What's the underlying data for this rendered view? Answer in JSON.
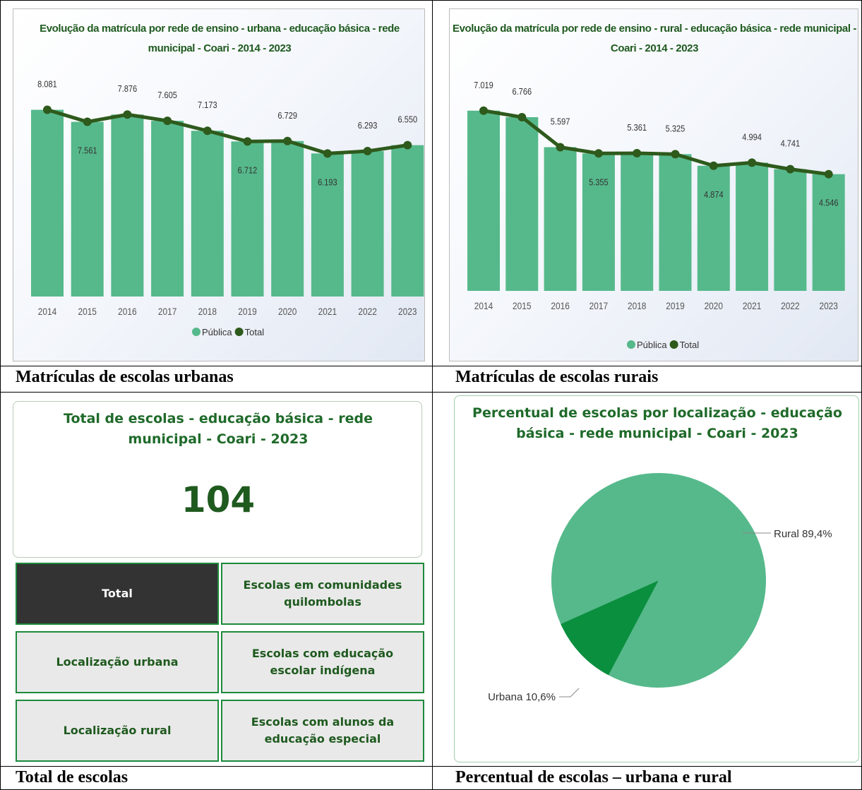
{
  "captions": [
    "Matrículas de escolas urbanas",
    "Matrículas de escolas rurais",
    "Total de escolas",
    "Percentual de escolas – urbana e rural"
  ],
  "chart_data": [
    {
      "type": "combo",
      "title": "Evolução da matrícula por rede de ensino - urbana - educação básica - rede municipal - Coari - 2014 - 2023",
      "categories": [
        "2014",
        "2015",
        "2016",
        "2017",
        "2018",
        "2019",
        "2020",
        "2021",
        "2022",
        "2023"
      ],
      "ylim": [
        0,
        8800
      ],
      "series": [
        {
          "name": "Pública",
          "type": "bar",
          "color": "#56b98b",
          "values": [
            8081,
            7561,
            7876,
            7605,
            7173,
            6712,
            6729,
            6193,
            6293,
            6550
          ]
        },
        {
          "name": "Total",
          "type": "line",
          "color": "#2e5a1c",
          "values": [
            8081,
            7561,
            7876,
            7605,
            7173,
            6712,
            6729,
            6193,
            6293,
            6550
          ],
          "value_labels": [
            "8.081",
            "7.561",
            "7.876",
            "7.605",
            "7.173",
            "6.712",
            "6.729",
            "6.193",
            "6.293",
            "6.550"
          ]
        }
      ]
    },
    {
      "type": "combo",
      "title": "Evolução da matrícula por rede de ensino - rural - educação básica - rede municipal - Coari - 2014 - 2023",
      "categories": [
        "2014",
        "2015",
        "2016",
        "2017",
        "2018",
        "2019",
        "2020",
        "2021",
        "2022",
        "2023"
      ],
      "ylim": [
        0,
        7700
      ],
      "series": [
        {
          "name": "Pública",
          "type": "bar",
          "color": "#56b98b",
          "values": [
            7019,
            6766,
            5597,
            5355,
            5361,
            5325,
            4874,
            4994,
            4741,
            4546
          ]
        },
        {
          "name": "Total",
          "type": "line",
          "color": "#2e5a1c",
          "values": [
            7019,
            6766,
            5597,
            5355,
            5361,
            5325,
            4874,
            4994,
            4741,
            4546
          ],
          "value_labels": [
            "7.019",
            "6.766",
            "5.597",
            "5.355",
            "5.361",
            "5.325",
            "4.874",
            "4.994",
            "4.741",
            "4.546"
          ]
        }
      ]
    },
    {
      "type": "pie",
      "title": "Percentual de escolas por localização - educação básica - rede municipal - Coari - 2023",
      "categories": [
        "Rural",
        "Urbana"
      ],
      "values": [
        89.4,
        10.6
      ],
      "value_labels": [
        "Rural 89,4%",
        "Urbana 10,6%"
      ],
      "colors": [
        "#56b98b",
        "#0a8f3f"
      ]
    }
  ],
  "card": {
    "title": "Total de escolas - educação básica - rede municipal - Coari - 2023",
    "value": 104,
    "buttons": [
      "Total",
      "Escolas em comunidades quilombolas",
      "Localização urbana",
      "Escolas com educação escolar indígena",
      "Localização rural",
      "Escolas com alunos da educação especial"
    ],
    "selected": "Total"
  }
}
